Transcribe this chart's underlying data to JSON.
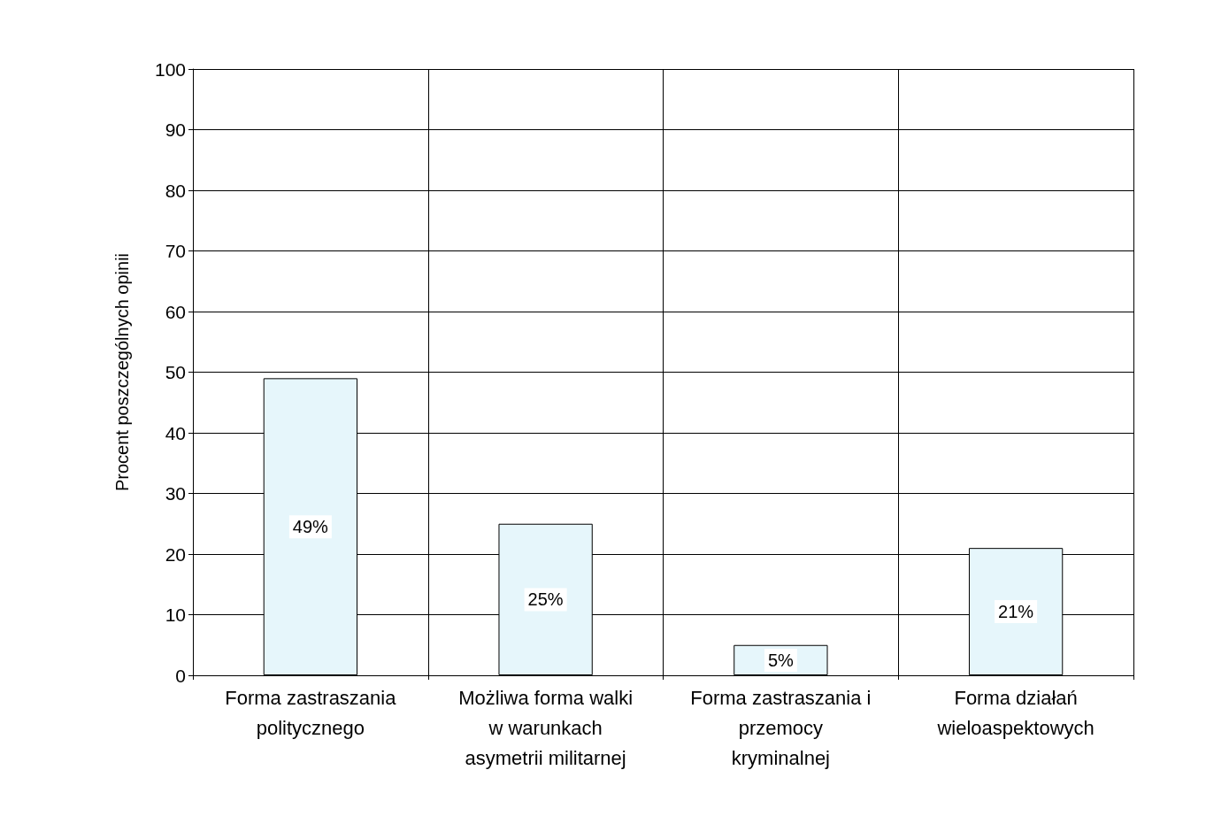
{
  "chart_data": {
    "type": "bar",
    "ylabel": "Procent poszczególnych opinii",
    "categories": [
      "Forma zastraszania\npolitycznego",
      "Możliwa forma walki\nw warunkach\nasymetrii militarnej",
      "Forma zastraszania i\nprzemocy\nkryminalnej",
      "Forma działań\nwieloaspektowych"
    ],
    "values": [
      49,
      25,
      5,
      21
    ],
    "value_labels": [
      "49%",
      "25%",
      "5%",
      "21%"
    ],
    "color": "#e6f6fb",
    "ylim": [
      0,
      100
    ],
    "yticks": [
      0,
      10,
      20,
      30,
      40,
      50,
      60,
      70,
      80,
      90,
      100
    ],
    "grid": true
  }
}
